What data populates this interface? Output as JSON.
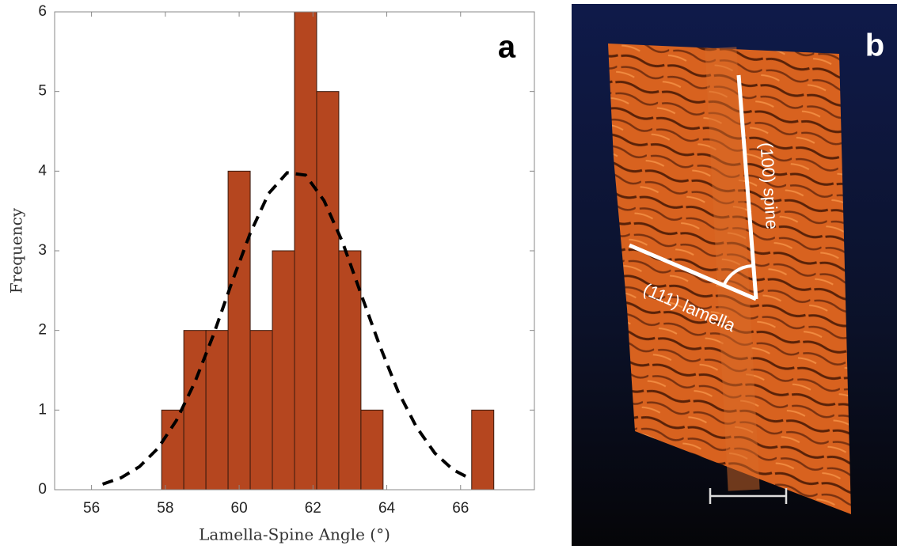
{
  "chart_data": {
    "type": "histogram",
    "panel_label": "a",
    "xlabel": "Lamella-Spine Angle (°)",
    "ylabel": "Frequency",
    "bins": [
      57.9,
      58.5,
      59.1,
      59.7,
      60.3,
      60.9,
      61.5,
      62.1,
      62.7,
      63.3,
      63.9,
      64.5,
      65.1,
      65.7,
      66.3,
      66.9
    ],
    "values": [
      1,
      2,
      2,
      4,
      2,
      3,
      6,
      5,
      3,
      1,
      0,
      0,
      0,
      0,
      1
    ],
    "color": "#b5461f",
    "fit": {
      "x": [
        56.3,
        56.8,
        57.3,
        57.8,
        58.3,
        58.8,
        59.3,
        59.8,
        60.3,
        60.8,
        61.3,
        61.8,
        62.3,
        62.8,
        63.3,
        63.8,
        64.3,
        64.8,
        65.3,
        65.8,
        66.3
      ],
      "y": [
        0.07,
        0.15,
        0.29,
        0.52,
        0.87,
        1.35,
        1.94,
        2.6,
        3.22,
        3.72,
        3.98,
        3.95,
        3.63,
        3.11,
        2.46,
        1.82,
        1.24,
        0.79,
        0.46,
        0.25,
        0.13
      ],
      "color": "#000000"
    },
    "xlim": [
      55,
      68
    ],
    "xticks": [
      56,
      58,
      60,
      62,
      64,
      66
    ],
    "ylim": [
      0,
      6
    ],
    "yticks": [
      0,
      1,
      2,
      3,
      4,
      5,
      6
    ]
  },
  "panel_b": {
    "panel_label": "b",
    "annotations": [
      "(100) spine",
      "(111) lamella"
    ]
  }
}
